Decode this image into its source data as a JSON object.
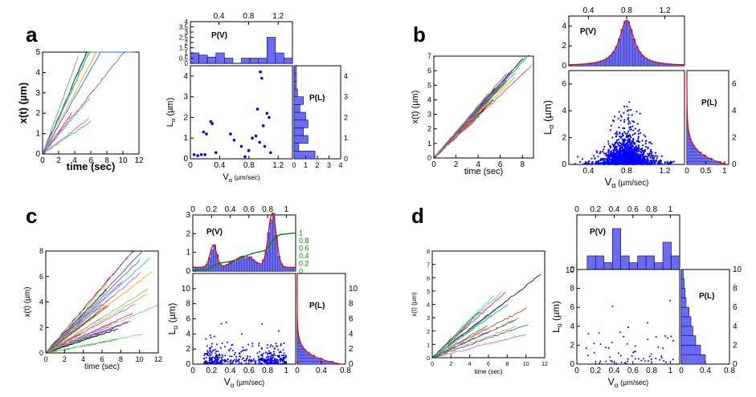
{
  "figure": {
    "panels": [
      {
        "letter": "a",
        "traj": {
          "xlabel": "time (sec)",
          "ylabel": "x(t) (µm)",
          "xticks": [
            "0",
            "2",
            "4",
            "6",
            "8",
            "10",
            "12"
          ],
          "yticks": [
            "0",
            "1",
            "2",
            "3",
            "4",
            "5"
          ],
          "xlim": [
            0,
            12
          ],
          "ylim": [
            0,
            5
          ],
          "colors": [
            "#e6007a",
            "#00bfbf",
            "#808080",
            "#00aa00",
            "#c040ff",
            "#000000",
            "#ff5050",
            "#66cc66",
            "#9933cc",
            "#33cccc"
          ]
        },
        "hist_top": {
          "label": "P(V)",
          "xticks_top": [
            "0.4",
            "0.8",
            "1.2"
          ],
          "yticks": [
            "0",
            "0.5",
            "1",
            "1.5",
            "2",
            "2.5",
            "3",
            "3.5",
            "4"
          ],
          "ylim": [
            0,
            4
          ]
        },
        "hist_right": {
          "label": "P(L)",
          "xticks": [
            "0",
            "1",
            "2",
            "3",
            "4"
          ],
          "yticks_right": [
            "0",
            "1",
            "2",
            "3",
            "4"
          ]
        },
        "scatter": {
          "xlabel": "V",
          "xsub": "α",
          "xunit": " (µm/sec)",
          "ylabel": "L",
          "ysub": "α",
          "yunit": " (µm)",
          "xticks": [
            "0",
            "0.4",
            "0.8",
            "1.2"
          ],
          "yticks": [
            "0",
            "1",
            "2",
            "3",
            "4"
          ]
        }
      },
      {
        "letter": "b",
        "traj": {
          "xlabel": "time (sec)",
          "ylabel": "x(t) (µm)",
          "xticks": [
            "0",
            "2",
            "4",
            "6",
            "8"
          ],
          "yticks": [
            "0",
            "1",
            "2",
            "3",
            "4",
            "5",
            "6",
            "7"
          ]
        },
        "hist_top": {
          "label": "P(V)",
          "xticks_top": [
            "0.4",
            "0.8",
            "1.2"
          ],
          "yticks": [
            "0",
            "2",
            "4"
          ]
        },
        "hist_right": {
          "label": "P(L)",
          "xticks": [
            "0",
            "0.5",
            "1"
          ],
          "yticks_right": [
            "0",
            "2",
            "4",
            "6"
          ]
        },
        "scatter": {
          "xlabel": "V",
          "xsub": "α",
          "xunit": " (µm/sec)",
          "ylabel": "L",
          "ysub": "α",
          "yunit": " (µm)",
          "xticks": [
            "0.4",
            "0.8",
            "1.2"
          ],
          "yticks": [
            "0",
            "2",
            "4",
            "6"
          ]
        }
      },
      {
        "letter": "c",
        "traj": {
          "xlabel": "time (sec)",
          "ylabel": "x(t) (µm)",
          "xticks": [
            "0",
            "2",
            "4",
            "6",
            "8",
            "10",
            "12"
          ],
          "yticks": [
            "0",
            "2",
            "4",
            "6",
            "8"
          ]
        },
        "hist_top": {
          "label": "P(V)",
          "xticks_top": [
            "0",
            "0.2",
            "0.4",
            "0.6",
            "0.8",
            "1"
          ],
          "yticks": [
            "0",
            "1",
            "2",
            "3"
          ],
          "cdf_ticks": [
            "0",
            "0.2",
            "0.4",
            "0.6",
            "0.8",
            "1"
          ]
        },
        "hist_right": {
          "label": "P(L)",
          "xticks": [
            "0",
            "0.4",
            "0.8"
          ],
          "yticks_right": [
            "0",
            "2",
            "4",
            "6",
            "8",
            "10"
          ]
        },
        "scatter": {
          "xlabel": "V",
          "xsub": "α",
          "xunit": " (µm/sec)",
          "ylabel": "L",
          "ysub": "α",
          "yunit": " (µm)",
          "xticks": [
            "0",
            "0.2",
            "0.4",
            "0.6",
            "0.8",
            "1"
          ],
          "yticks": [
            "0",
            "2",
            "4",
            "6",
            "8",
            "10"
          ]
        }
      },
      {
        "letter": "d",
        "traj": {
          "xlabel": "time (sec)",
          "ylabel": "x(t) (µm)",
          "xticks": [
            "0",
            "2",
            "4",
            "6",
            "8",
            "10",
            "12"
          ],
          "yticks": [
            "0",
            "1",
            "2",
            "3",
            "4",
            "5",
            "6",
            "7",
            "8"
          ]
        },
        "hist_top": {
          "label": "P(V)",
          "xticks_top": [
            "0",
            "0.2",
            "0.4",
            "0.6",
            "0.8",
            "1"
          ],
          "yticks": [
            "0",
            "10"
          ]
        },
        "hist_right": {
          "label": "P(L)",
          "xticks": [
            "0",
            "0.4",
            "0.8"
          ],
          "yticks_right": [
            "0",
            "2",
            "4",
            "6",
            "8",
            "10"
          ]
        },
        "scatter": {
          "xlabel": "V",
          "xsub": "α",
          "xunit": " (µm/sec)",
          "ylabel": "L",
          "ysub": "α",
          "yunit": " (µm)",
          "xticks": [
            "0",
            "0.2",
            "0.4",
            "0.6",
            "0.8",
            "1"
          ],
          "yticks": [
            "0",
            "2",
            "4",
            "6",
            "8",
            "10"
          ]
        }
      }
    ]
  },
  "chart_data": [
    {
      "panel": "a",
      "type": "scatter",
      "title": "",
      "xlabel": "Vα (µm/sec)",
      "ylabel": "Lα (µm)",
      "xlim": [
        0,
        1.4
      ],
      "ylim": [
        0,
        4.5
      ],
      "x": [
        0.05,
        0.1,
        0.15,
        0.18,
        0.2,
        0.22,
        0.28,
        0.3,
        0.35,
        0.55,
        0.6,
        0.7,
        0.75,
        0.8,
        0.85,
        0.9,
        0.92,
        0.95,
        0.96,
        0.98,
        1.0,
        1.02,
        1.05,
        1.08,
        1.1
      ],
      "y": [
        0.2,
        0.15,
        0.2,
        1.3,
        0.2,
        1.2,
        1.8,
        1.7,
        0.3,
        1.2,
        0.9,
        0.6,
        0.1,
        0.4,
        1.0,
        1.1,
        2.4,
        0.8,
        4.2,
        3.9,
        1.6,
        0.6,
        2.2,
        2.0,
        0.3
      ],
      "hist_top": {
        "label": "P(V)",
        "bins": [
          0,
          0.1,
          0.2,
          0.3,
          0.4,
          0.5,
          0.6,
          0.7,
          0.8,
          0.9,
          1.0,
          1.1,
          1.2
        ],
        "counts": [
          1,
          0.8,
          0.6,
          1,
          0.5,
          0,
          0.5,
          0.5,
          0.5,
          2.5,
          1.0,
          0.5
        ]
      },
      "hist_right": {
        "label": "P(L)",
        "bins": [
          0,
          0.25,
          0.5,
          0.75,
          1,
          1.25,
          1.5,
          1.75,
          2,
          2.25,
          2.5,
          3,
          4
        ],
        "counts": [
          1.8,
          0.4,
          1.2,
          0.8,
          1.2,
          1.0,
          0.5,
          0.8,
          0.3,
          0.2,
          0.2,
          0.2
        ]
      },
      "trajectories_xlim": [
        0,
        12
      ],
      "trajectories_ylim": [
        0,
        5
      ]
    },
    {
      "panel": "b",
      "type": "scatter",
      "title": "",
      "xlabel": "Vα (µm/sec)",
      "ylabel": "Lα (µm)",
      "xlim": [
        0.2,
        1.4
      ],
      "ylim": [
        0,
        7
      ],
      "description_series": "dense cloud centered at V≈0.8 µm/sec, L mostly below 3 µm with tail to 6 µm",
      "hist_top": {
        "label": "P(V)",
        "bins_center": 0.8,
        "peak": 4.6,
        "fit": "Lorentzian-like, red"
      },
      "hist_right": {
        "label": "P(L)",
        "decay": "exponential",
        "peak": 6
      },
      "trajectories_xlim": [
        0,
        9
      ],
      "trajectories_ylim": [
        0,
        7
      ]
    },
    {
      "panel": "c",
      "type": "scatter",
      "title": "",
      "xlabel": "Vα (µm/sec)",
      "ylabel": "Lα (µm)",
      "xlim": [
        0,
        1.1
      ],
      "ylim": [
        0,
        12
      ],
      "hist_top": {
        "label": "P(V)",
        "peaks": [
          0.22,
          0.85
        ],
        "peak_heights": [
          1.2,
          2.9
        ],
        "cdf": "green sigmoid, right axis 0–1"
      },
      "hist_right": {
        "label": "P(L)",
        "decay": "exponential",
        "peak": 4
      },
      "trajectories_xlim": [
        0,
        12
      ],
      "trajectories_ylim": [
        0,
        8
      ]
    },
    {
      "panel": "d",
      "type": "scatter",
      "title": "",
      "xlabel": "Vα (µm/sec)",
      "ylabel": "Lα (µm)",
      "xlim": [
        0,
        1.1
      ],
      "ylim": [
        0,
        10
      ],
      "hist_top": {
        "label": "P(V)",
        "counts": [
          1,
          1,
          0.5,
          3,
          1,
          0.5,
          1,
          1,
          0.5,
          2,
          1
        ]
      },
      "hist_right": {
        "label": "P(L)",
        "counts": [
          2.5,
          2,
          1.5,
          1.2,
          1,
          0.8,
          0.5,
          0.4,
          0.3,
          0.2
        ]
      },
      "trajectories_xlim": [
        0,
        12
      ],
      "trajectories_ylim": [
        0,
        8
      ]
    }
  ],
  "colors": {
    "hist_fill": "#6c6cf0",
    "hist_edge": "#000080",
    "scatter": "#0000ff",
    "fit": "#e00000",
    "cdf": "#008800"
  }
}
